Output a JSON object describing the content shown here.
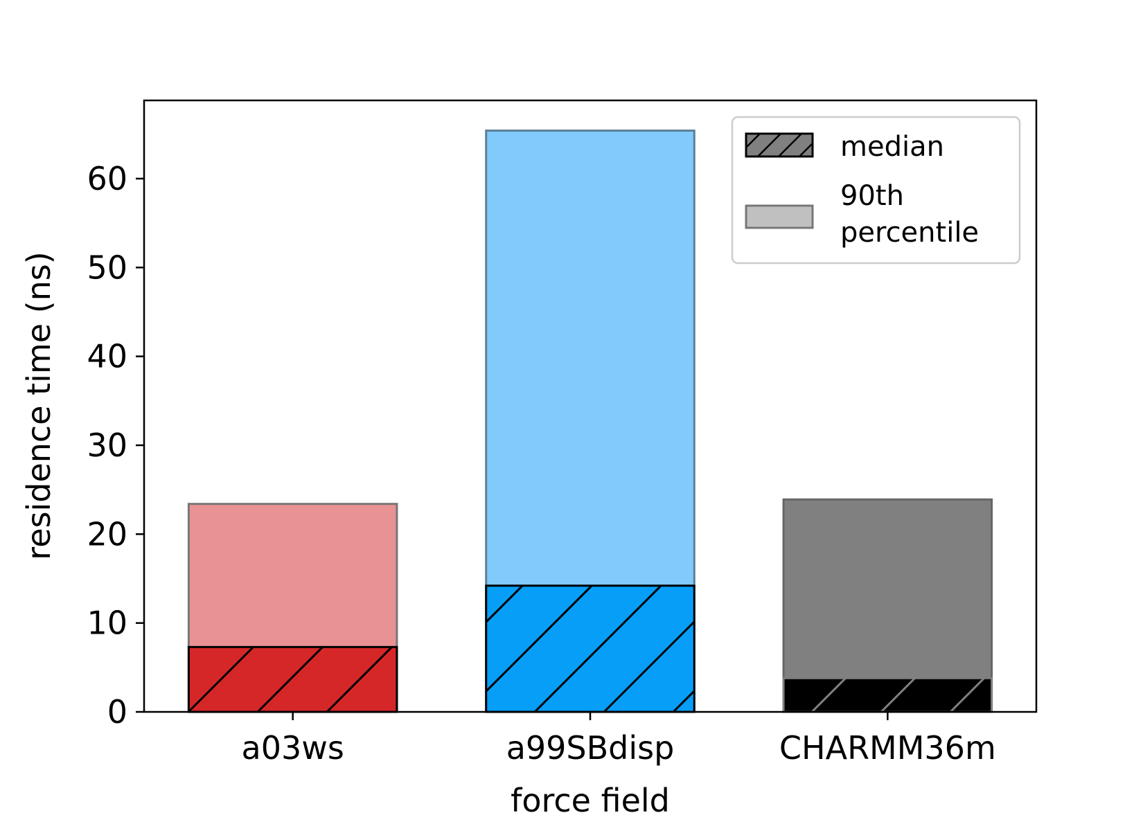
{
  "chart_data": {
    "type": "bar",
    "xlabel": "force field",
    "ylabel": "residence time (ns)",
    "categories": [
      "a03ws",
      "a99SBdisp",
      "CHARMM36m"
    ],
    "ylim": [
      0,
      68.8
    ],
    "yticks": [
      0,
      10,
      20,
      30,
      40,
      50,
      60
    ],
    "grid": false,
    "legend_position": "top-right",
    "series": [
      {
        "name": "median",
        "values": [
          7.3,
          14.2,
          3.8
        ],
        "hatched": true
      },
      {
        "name": "90th percentile",
        "values": [
          23.4,
          65.4,
          23.9
        ],
        "hatched": false
      }
    ],
    "legend": {
      "median": "median",
      "p90_line1": "90th",
      "p90_line2": "percentile"
    },
    "colors": {
      "median_fill": [
        "#d62728",
        "#069ef7",
        "#000000"
      ],
      "p90_fill": [
        "#e99294",
        "#82cafc",
        "#808080"
      ],
      "median_hatch": [
        "#000000",
        "#000000",
        "#808080"
      ],
      "median_edge": [
        "#000000",
        "#000000",
        "#808080"
      ],
      "p90_edge": [
        "#777777",
        "#5d7e95",
        "#666666"
      ],
      "legend_median_fill": "#808080",
      "legend_p90_fill": "#c0c0c0"
    }
  }
}
